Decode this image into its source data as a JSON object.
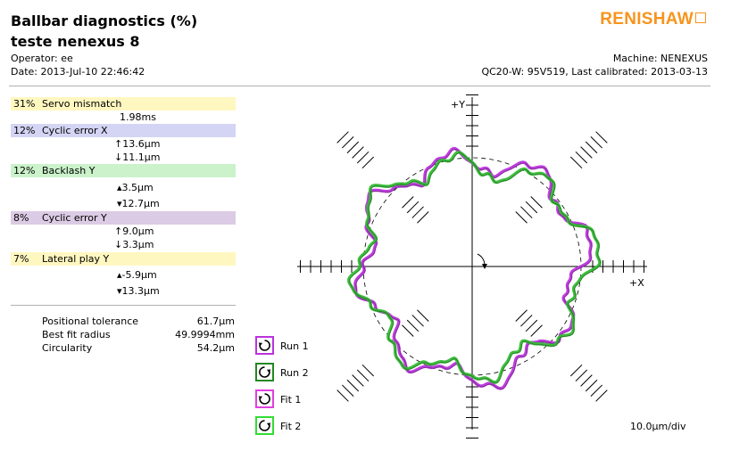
{
  "header": {
    "title": "Ballbar diagnostics (%)",
    "subtitle": "teste nenexus 8",
    "operator": "Operator: ee",
    "date": "Date: 2013-Jul-10 22:46:42",
    "machine": "Machine: NENEXUS",
    "calibration": "QC20-W: 95V519, Last calibrated: 2013-03-13",
    "logo": "RENISHAW"
  },
  "colors": {
    "servo": "#fff7c0",
    "cyclic_x": "#d4d4f4",
    "backlash": "#cbf2cb",
    "cyclic_y": "#dccbe4",
    "lateral": "#fff7c0",
    "run1": "#bb33dd",
    "run2": "#33bb33",
    "fit1": "#e040e0",
    "fit2": "#33dd33",
    "logo": "#f7941d"
  },
  "diagnostics": [
    {
      "percent": "31%",
      "name": "Servo mismatch",
      "values": [
        "1.98ms"
      ]
    },
    {
      "percent": "12%",
      "name": "Cyclic error X",
      "values": [
        "↑13.6µm",
        "↓11.1µm"
      ]
    },
    {
      "percent": "12%",
      "name": "Backlash Y",
      "values": [
        "▴3.5µm",
        "▾12.7µm"
      ]
    },
    {
      "percent": "8%",
      "name": "Cyclic error Y",
      "values": [
        "↑9.0µm",
        "↓3.3µm"
      ]
    },
    {
      "percent": "7%",
      "name": "Lateral play Y",
      "values": [
        "▴-5.9µm",
        "▾13.3µm"
      ]
    }
  ],
  "stats": [
    {
      "label": "Positional tolerance",
      "value": "61.7µm"
    },
    {
      "label": "Best fit radius",
      "value": "49.9994mm"
    },
    {
      "label": "Circularity",
      "value": "54.2µm"
    }
  ],
  "legend": [
    {
      "label": "Run 1",
      "icon": "clockwise-arrow-icon"
    },
    {
      "label": "Run 2",
      "icon": "counterclockwise-arrow-icon"
    },
    {
      "label": "Fit 1",
      "icon": "clockwise-arrow-icon"
    },
    {
      "label": "Fit 2",
      "icon": "counterclockwise-arrow-icon"
    }
  ],
  "chart_data": {
    "type": "scatter",
    "title": "Ballbar diagnostics (%)",
    "axis_labels": {
      "x": "+X",
      "y": "+Y"
    },
    "scale_label": "10.0µm/div",
    "x_ticks_per_side": 10,
    "y_ticks_per_side": 10,
    "reference_circle": "dashed",
    "series": [
      {
        "name": "Run 1",
        "color": "#bb33dd",
        "lobes": 8,
        "amplitude_um": 6,
        "phase_deg": 0,
        "offset_um": [
          0,
          0
        ]
      },
      {
        "name": "Run 2",
        "color": "#33bb33",
        "lobes": 8,
        "amplitude_um": 6,
        "phase_deg": 22,
        "offset_um": [
          0,
          0
        ]
      }
    ]
  }
}
